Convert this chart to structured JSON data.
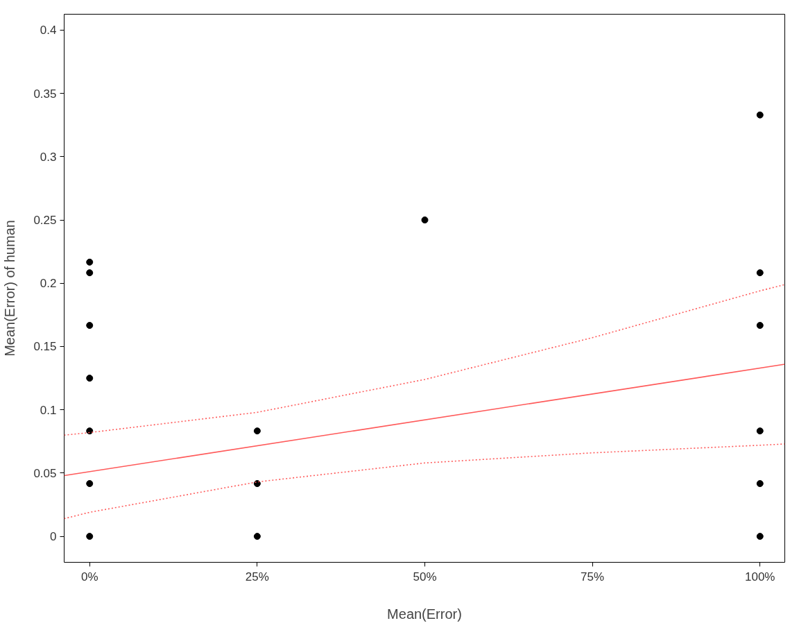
{
  "chart_data": {
    "type": "scatter",
    "xlabel": "Mean(Error)",
    "ylabel": "Mean(Error) of human",
    "xlim": [
      -3.8,
      103.7
    ],
    "ylim": [
      -0.0205,
      0.4126
    ],
    "xticks": [
      {
        "value": 0,
        "label": "0%"
      },
      {
        "value": 25,
        "label": "25%"
      },
      {
        "value": 50,
        "label": "50%"
      },
      {
        "value": 75,
        "label": "75%"
      },
      {
        "value": 100,
        "label": "100%"
      }
    ],
    "yticks": [
      0,
      0.05,
      0.1,
      0.15,
      0.2,
      0.25,
      0.3,
      0.35,
      0.4
    ],
    "grid": false,
    "series": [
      {
        "marker": "circle",
        "color": "#000000",
        "x": [
          0,
          0,
          0,
          0,
          0,
          0,
          0,
          25,
          25,
          25,
          50,
          100,
          100,
          100,
          100,
          100,
          100
        ],
        "values": [
          0.2167,
          0.2083,
          0.1667,
          0.125,
          0.0833,
          0.0417,
          0,
          0.0833,
          0.0417,
          0,
          0.25,
          0.333,
          0.2083,
          0.1667,
          0.0833,
          0.0417,
          0
        ]
      },
      {
        "type": "line",
        "marker": "none",
        "color": "#ff5a5a",
        "line_style": "solid",
        "x": [
          -3.8,
          103.7
        ],
        "values": [
          0.048,
          0.136
        ]
      },
      {
        "type": "line",
        "marker": "none",
        "color": "#ff5a5a",
        "line_style": "dotted",
        "x": [
          -3.8,
          0,
          25,
          50,
          75,
          100,
          103.7
        ],
        "values": [
          0.08,
          0.082,
          0.098,
          0.124,
          0.157,
          0.194,
          0.199
        ]
      },
      {
        "type": "line",
        "marker": "none",
        "color": "#ff5a5a",
        "line_style": "dotted",
        "x": [
          -3.8,
          0,
          25,
          50,
          75,
          100,
          103.7
        ],
        "values": [
          0.014,
          0.019,
          0.043,
          0.058,
          0.066,
          0.072,
          0.073
        ]
      }
    ]
  }
}
